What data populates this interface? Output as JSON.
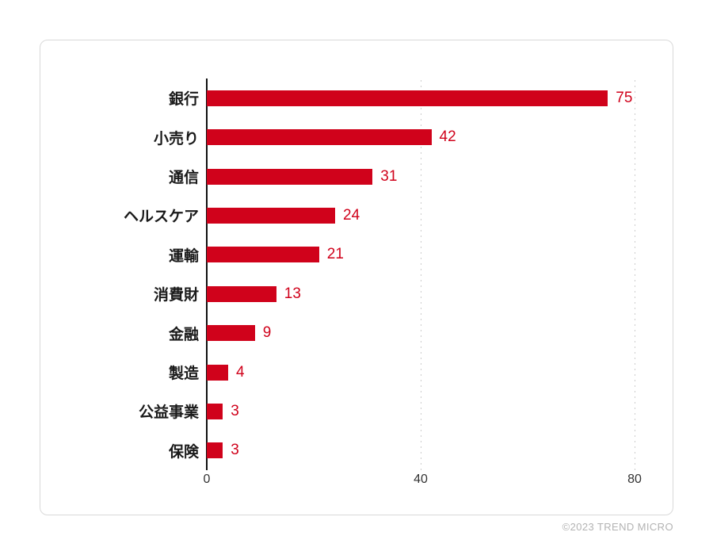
{
  "footer": {
    "copyright": "©2023 TREND MICRO"
  },
  "colors": {
    "bar": "#d0021b",
    "value_text": "#d0021b",
    "axis": "#111111",
    "label_text": "#1a1a1a",
    "tick_text": "#333333",
    "gridline": "#cccccc",
    "card_border": "#d9d9d9",
    "footer_text": "#b3b3b3"
  },
  "chart_data": {
    "type": "bar",
    "orientation": "horizontal",
    "title": "",
    "xlabel": "",
    "ylabel": "",
    "categories": [
      "銀行",
      "小売り",
      "通信",
      "ヘルスケア",
      "運輸",
      "消費財",
      "金融",
      "製造",
      "公益事業",
      "保険"
    ],
    "values": [
      75,
      42,
      31,
      24,
      21,
      13,
      9,
      4,
      3,
      3
    ],
    "value_labels_shown": true,
    "xlim": [
      0,
      80
    ],
    "x_ticks": [
      0,
      40,
      80
    ],
    "grid": "dotted vertical gridlines at 40 and 80",
    "legend": "none",
    "bar_color": "#d0021b"
  }
}
